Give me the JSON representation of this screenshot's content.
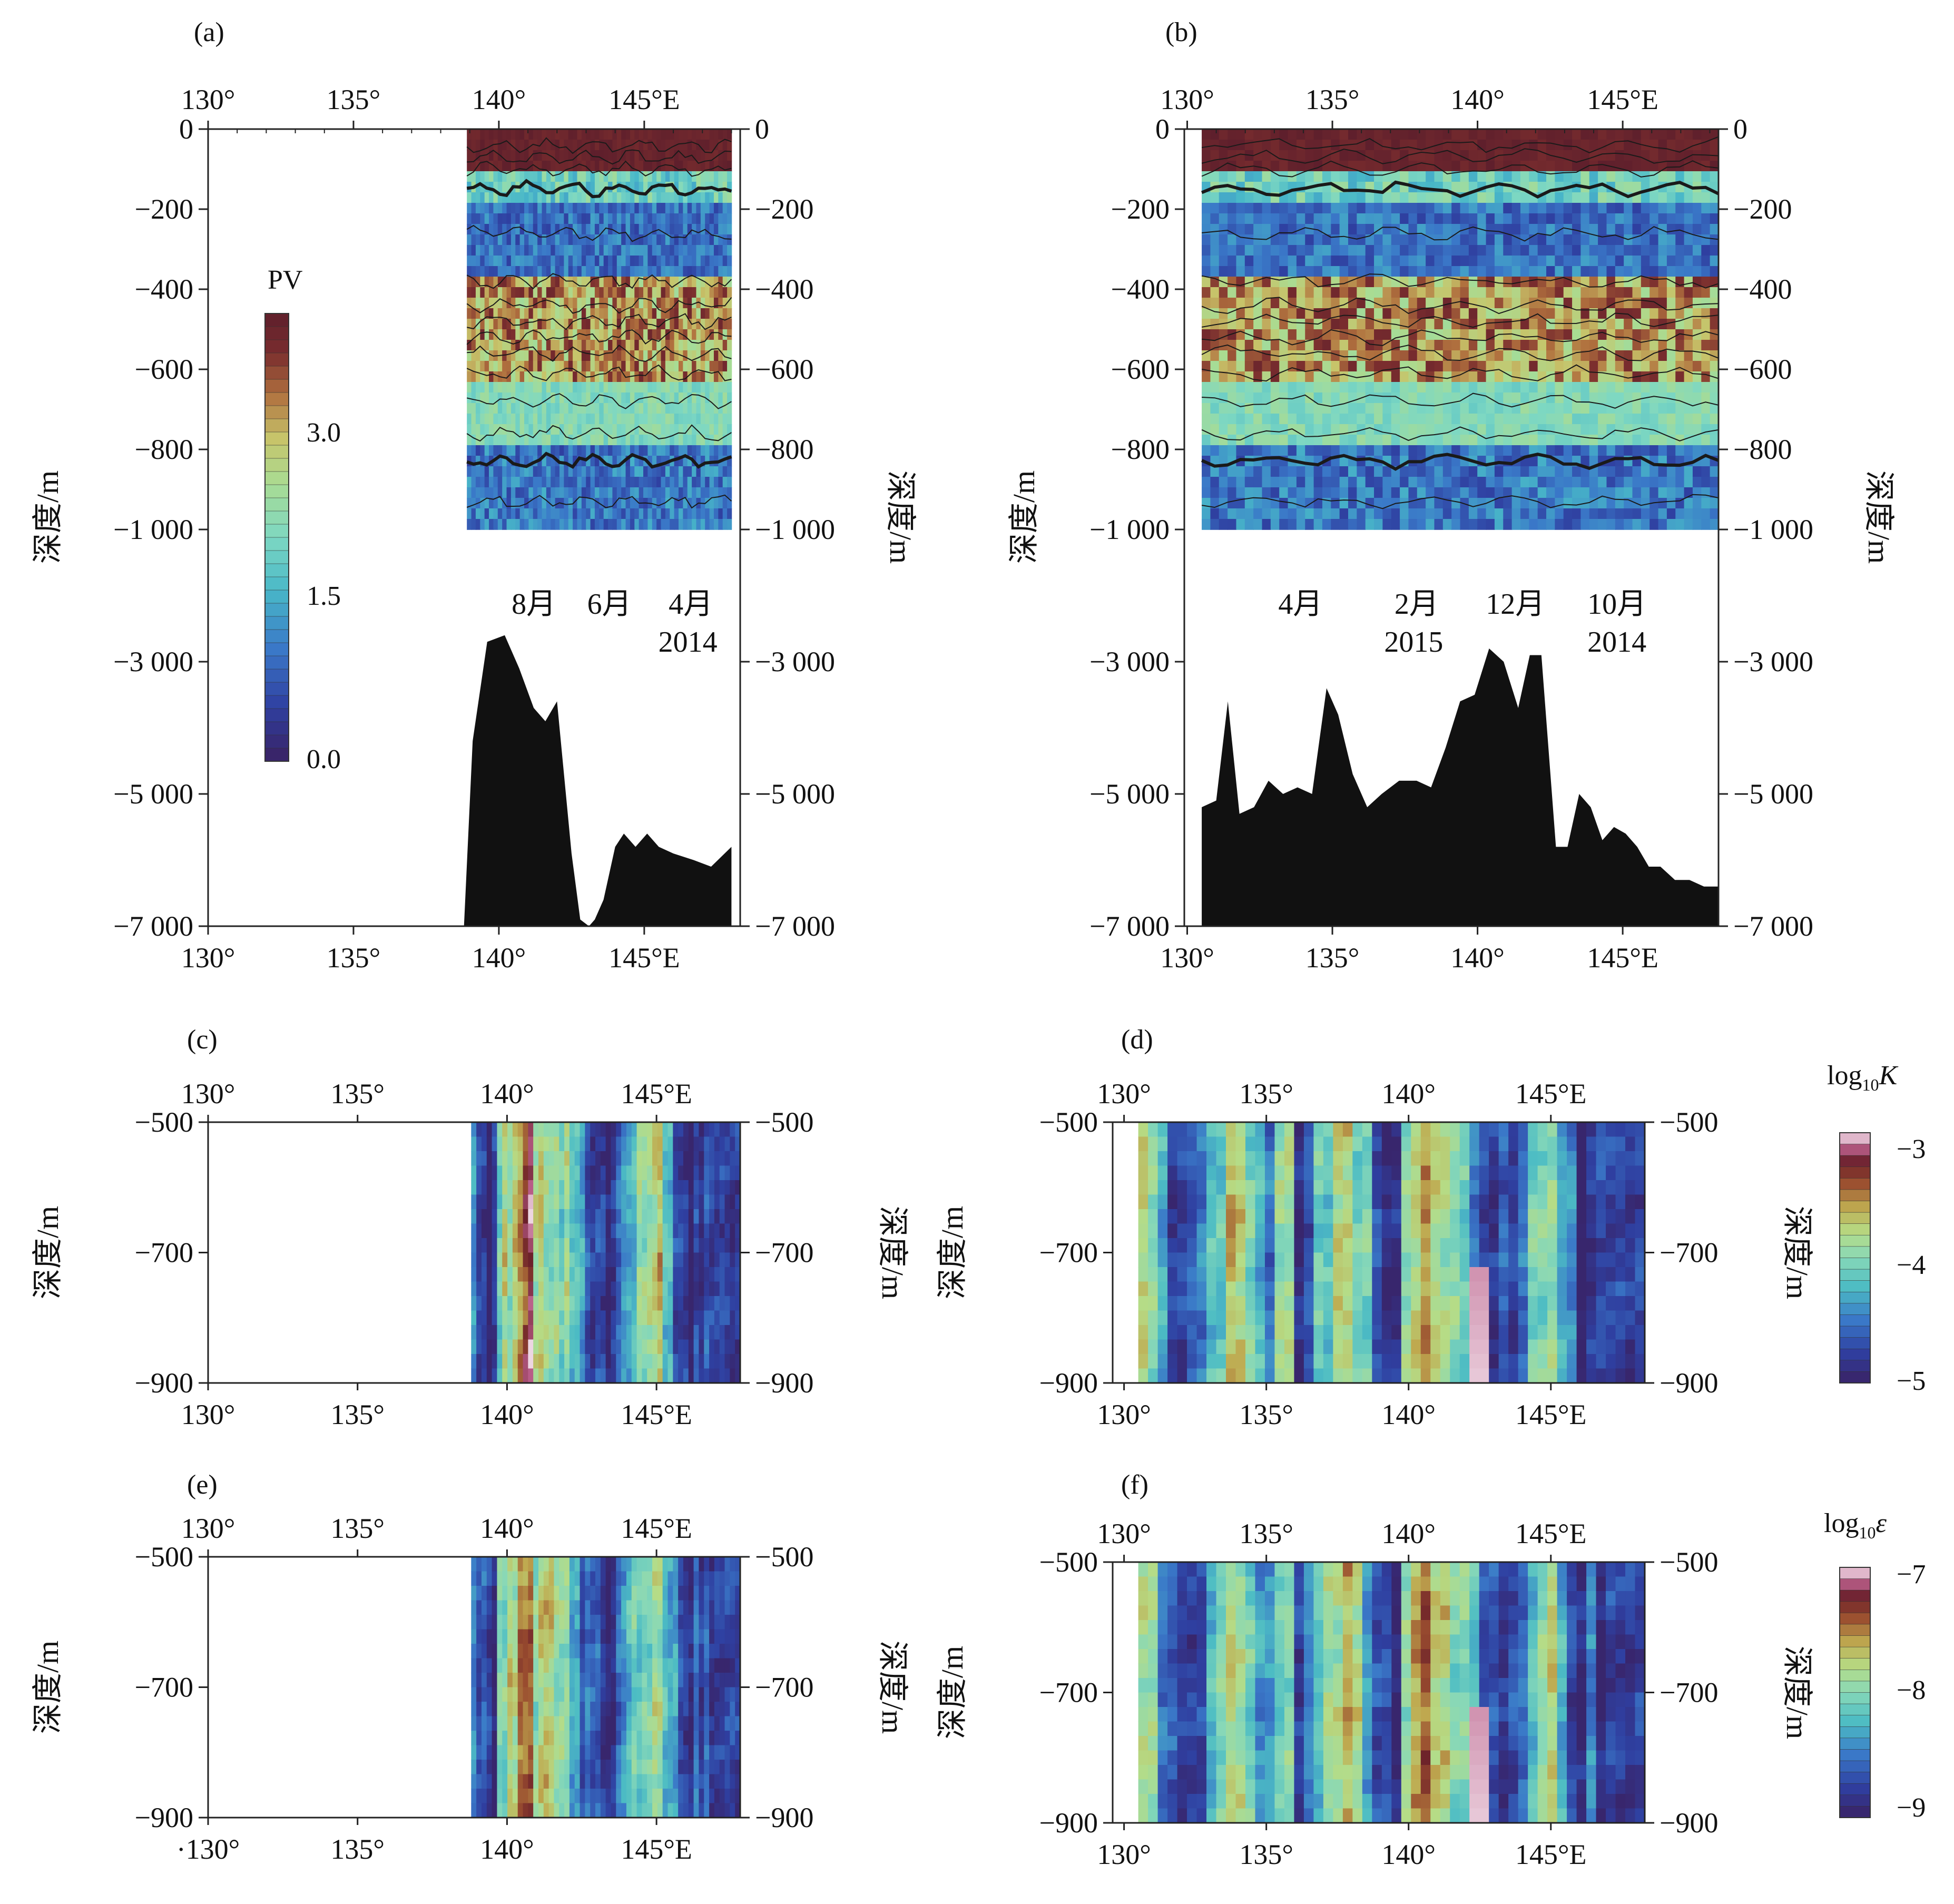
{
  "figure": {
    "panel_labels": [
      "(a)",
      "(b)",
      "(c)",
      "(d)",
      "(e)",
      "(f)"
    ],
    "depth_label": "深度/m",
    "lon_ticks_top": [
      "130°",
      "135°",
      "140°",
      "145°E"
    ],
    "lon_ticks_bottom": [
      "130°",
      "135°",
      "140°",
      "145°E"
    ],
    "lon_ticks_bottom_e": [
      "·130°",
      "135°",
      "140°",
      "145°E"
    ]
  },
  "colors": {
    "land": "#111111",
    "contour": "#1a1a1a",
    "ramp_low": "#3a2060",
    "ramp_high": "#f6e8f0"
  },
  "colorbars": {
    "pv": {
      "title": "PV",
      "ticks": [
        "3.0",
        "1.5",
        "0.0"
      ],
      "min": 0.0,
      "max": 4.2
    },
    "k": {
      "title_main": "log",
      "title_sub": "10",
      "title_var": "K",
      "ticks": [
        "−3",
        "−4",
        "−5"
      ],
      "min": -5,
      "max": -3
    },
    "eps": {
      "title_main": "log",
      "title_sub": "10",
      "title_var": "ε",
      "ticks": [
        "−7",
        "−8",
        "−9"
      ],
      "min": -9,
      "max": -7
    }
  },
  "chart_data": [
    {
      "id": "a",
      "type": "heatmap",
      "title": "(a)",
      "xlabel": "",
      "ylabel": "深度/m",
      "xlim": [
        130,
        148.3
      ],
      "x_ticks": [
        130,
        135,
        140,
        145
      ],
      "x_tick_labels": [
        "130°",
        "135°",
        "140°",
        "145°E"
      ],
      "y_axis": "broken: 0..-1000 upper, -1000..-7000 lower",
      "y_tick_labels_upper": [
        "0",
        "−200",
        "−400",
        "−600",
        "−800",
        "−1 000"
      ],
      "y_tick_labels_lower": [
        "−3 000",
        "−5 000",
        "−7 000"
      ],
      "y_ticks_upper": [
        0,
        -200,
        -400,
        -600,
        -800,
        -1000
      ],
      "y_ticks_lower": [
        -3000,
        -5000,
        -7000
      ],
      "data_range_lon": [
        138.9,
        148.0
      ],
      "colorbar": "PV",
      "time_annotations": [
        {
          "text": "8月",
          "lon": 141.2
        },
        {
          "text": "6月",
          "lon": 143.8
        },
        {
          "text": "4月",
          "lon": 146.6
        },
        {
          "text": "2014",
          "lon": 146.5
        }
      ],
      "bathymetry": {
        "lon": [
          138.8,
          139.1,
          139.6,
          140.2,
          140.7,
          141.2,
          141.6,
          142.0,
          142.5,
          142.8,
          143.1,
          143.3,
          143.6,
          144.0,
          144.3,
          144.7,
          145.1,
          145.5,
          146.0,
          146.7,
          147.3,
          148.0
        ],
        "depth": [
          -7000,
          -4200,
          -2700,
          -2600,
          -3100,
          -3700,
          -3900,
          -3600,
          -5900,
          -6900,
          -7000,
          -6900,
          -6600,
          -5800,
          -5600,
          -5800,
          -5600,
          -5800,
          -5900,
          -6000,
          -6100,
          -5800
        ]
      }
    },
    {
      "id": "b",
      "type": "heatmap",
      "title": "(b)",
      "xlabel": "",
      "ylabel": "深度/m",
      "xlim": [
        129.9,
        148.3
      ],
      "x_ticks": [
        130,
        135,
        140,
        145
      ],
      "x_tick_labels": [
        "130°",
        "135°",
        "140°",
        "145°E"
      ],
      "y_axis": "broken: 0..-1000 upper, -1000..-7000 lower",
      "y_tick_labels_upper": [
        "0",
        "−200",
        "−400",
        "−600",
        "−800",
        "−1 000"
      ],
      "y_tick_labels_lower": [
        "−3 000",
        "−5 000",
        "−7 000"
      ],
      "y_ticks_upper": [
        0,
        -200,
        -400,
        -600,
        -800,
        -1000
      ],
      "y_ticks_lower": [
        -3000,
        -5000,
        -7000
      ],
      "data_range_lon": [
        130.5,
        148.3
      ],
      "colorbar": "PV",
      "time_annotations": [
        {
          "text": "4月",
          "lon": 133.9
        },
        {
          "text": "2月",
          "lon": 137.9
        },
        {
          "text": "2015",
          "lon": 137.8
        },
        {
          "text": "12月",
          "lon": 141.3
        },
        {
          "text": "10月",
          "lon": 144.8
        },
        {
          "text": "2014",
          "lon": 144.8
        }
      ],
      "bathymetry": {
        "lon": [
          130.5,
          131.0,
          131.4,
          131.8,
          132.3,
          132.8,
          133.3,
          133.8,
          134.3,
          134.8,
          135.2,
          135.7,
          136.2,
          136.7,
          137.3,
          137.9,
          138.4,
          138.9,
          139.4,
          139.9,
          140.4,
          140.9,
          141.4,
          141.8,
          142.2,
          142.7,
          143.1,
          143.5,
          143.9,
          144.3,
          144.7,
          145.1,
          145.5,
          145.9,
          146.3,
          146.8,
          147.3,
          147.8,
          148.3
        ],
        "depth": [
          -5200,
          -5100,
          -3600,
          -5300,
          -5200,
          -4800,
          -5000,
          -4900,
          -5000,
          -3400,
          -3800,
          -4700,
          -5200,
          -5000,
          -4800,
          -4800,
          -4900,
          -4300,
          -3600,
          -3500,
          -2800,
          -3000,
          -3700,
          -2900,
          -2900,
          -5800,
          -5800,
          -5000,
          -5200,
          -5700,
          -5500,
          -5600,
          -5800,
          -6100,
          -6100,
          -6300,
          -6300,
          -6400,
          -6400
        ]
      }
    },
    {
      "id": "c",
      "type": "heatmap",
      "title": "(c)",
      "xlabel": "",
      "ylabel": "深度/m",
      "xlim": [
        130,
        147.8
      ],
      "ylim": [
        -900,
        -500
      ],
      "x_ticks": [
        130,
        135,
        140,
        145
      ],
      "x_tick_labels": [
        "130°",
        "135°",
        "140°",
        "145°E"
      ],
      "y_ticks": [
        -500,
        -700,
        -900
      ],
      "y_tick_labels": [
        "−500",
        "−700",
        "−900"
      ],
      "data_range_lon": [
        138.8,
        147.8
      ],
      "colorbar": "log10K"
    },
    {
      "id": "d",
      "type": "heatmap",
      "title": "(d)",
      "xlabel": "",
      "ylabel": "深度/m",
      "xlim": [
        130,
        148.3
      ],
      "ylim": [
        -900,
        -500
      ],
      "x_ticks": [
        130,
        135,
        140,
        145
      ],
      "x_tick_labels": [
        "130°",
        "135°",
        "140°",
        "145°E"
      ],
      "y_ticks": [
        -500,
        -700,
        -900
      ],
      "y_tick_labels": [
        "−500",
        "−700",
        "−900"
      ],
      "data_range_lon": [
        130.5,
        148.3
      ],
      "colorbar": "log10K"
    },
    {
      "id": "e",
      "type": "heatmap",
      "title": "(e)",
      "xlabel": "",
      "ylabel": "深度/m",
      "xlim": [
        130,
        147.8
      ],
      "ylim": [
        -900,
        -500
      ],
      "x_ticks": [
        130,
        135,
        140,
        145
      ],
      "x_tick_labels": [
        "130°",
        "135°",
        "140°",
        "145°E"
      ],
      "y_ticks": [
        -500,
        -700,
        -900
      ],
      "y_tick_labels": [
        "−500",
        "−700",
        "−900"
      ],
      "data_range_lon": [
        138.8,
        147.8
      ],
      "colorbar": "log10ε"
    },
    {
      "id": "f",
      "type": "heatmap",
      "title": "(f)",
      "xlabel": "",
      "ylabel": "深度/m",
      "xlim": [
        130,
        148.3
      ],
      "ylim": [
        -900,
        -500
      ],
      "x_ticks": [
        130,
        135,
        140,
        145
      ],
      "x_tick_labels": [
        "130°",
        "135°",
        "140°",
        "145°E"
      ],
      "y_ticks": [
        -500,
        -700,
        -900
      ],
      "y_tick_labels": [
        "−500",
        "−700",
        "−900"
      ],
      "data_range_lon": [
        130.5,
        148.3
      ],
      "colorbar": "log10ε"
    }
  ]
}
